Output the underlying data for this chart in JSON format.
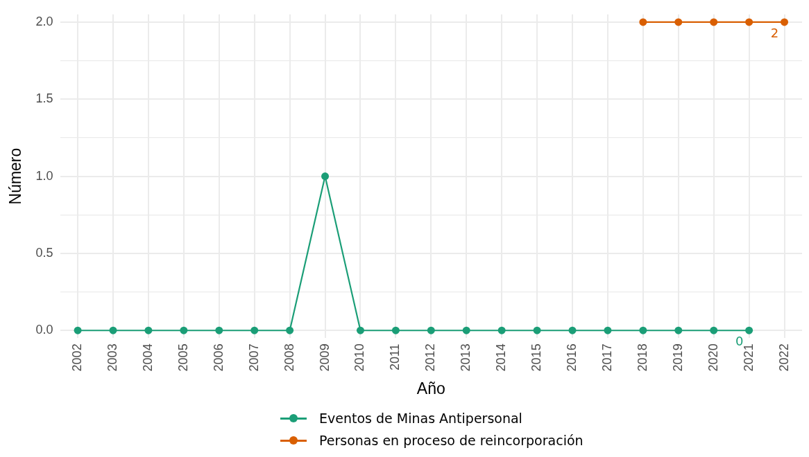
{
  "chart_data": {
    "type": "line",
    "xlabel": "Año",
    "ylabel": "Número",
    "categories": [
      "2002",
      "2003",
      "2004",
      "2005",
      "2006",
      "2007",
      "2008",
      "2009",
      "2010",
      "2011",
      "2012",
      "2013",
      "2014",
      "2015",
      "2016",
      "2017",
      "2018",
      "2019",
      "2020",
      "2021",
      "2022"
    ],
    "series": [
      {
        "name": "Eventos de Minas Antipersonal",
        "color": "#1b9e77",
        "values": [
          0,
          0,
          0,
          0,
          0,
          0,
          0,
          1,
          0,
          0,
          0,
          0,
          0,
          0,
          0,
          0,
          0,
          0,
          0,
          0,
          null
        ],
        "value_labels": [
          null,
          null,
          null,
          null,
          null,
          null,
          null,
          null,
          null,
          null,
          null,
          null,
          null,
          null,
          null,
          null,
          null,
          null,
          null,
          "0",
          null
        ]
      },
      {
        "name": "Personas en proceso de reincorporación",
        "color": "#d95f02",
        "values": [
          null,
          null,
          null,
          null,
          null,
          null,
          null,
          null,
          null,
          null,
          null,
          null,
          null,
          null,
          null,
          null,
          2,
          2,
          2,
          2,
          2
        ],
        "value_labels": [
          null,
          null,
          null,
          null,
          null,
          null,
          null,
          null,
          null,
          null,
          null,
          null,
          null,
          null,
          null,
          null,
          null,
          null,
          null,
          null,
          "2"
        ]
      }
    ],
    "ylim": [
      -0.05,
      2.05
    ],
    "yticks": [
      {
        "value": 0,
        "label": "0.0"
      },
      {
        "value": 0.25,
        "label": null
      },
      {
        "value": 0.5,
        "label": "0.5"
      },
      {
        "value": 0.75,
        "label": null
      },
      {
        "value": 1,
        "label": "1.0"
      },
      {
        "value": 1.25,
        "label": null
      },
      {
        "value": 1.5,
        "label": "1.5"
      },
      {
        "value": 1.75,
        "label": null
      },
      {
        "value": 2,
        "label": "2.0"
      }
    ],
    "grid": true,
    "legend": "bottom",
    "marker": "circle",
    "line_style": "solid"
  }
}
